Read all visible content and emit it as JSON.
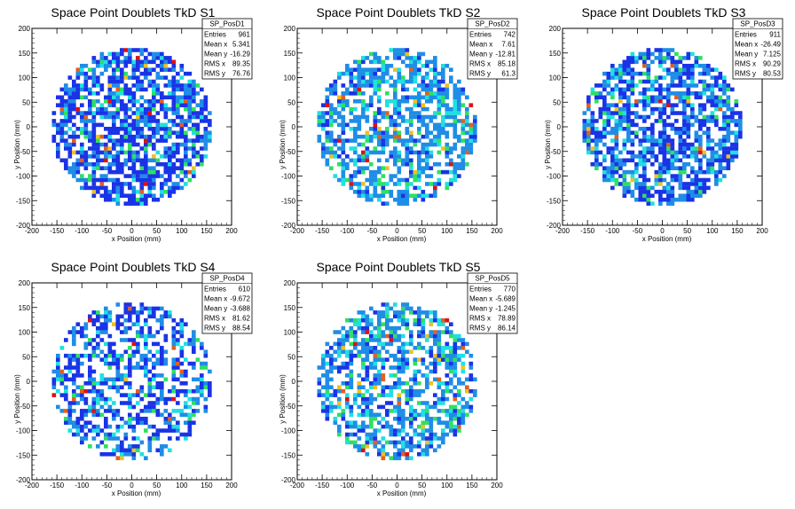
{
  "palette": [
    "#1a33e6",
    "#1f8de6",
    "#20e0e0",
    "#2fe060",
    "#f0c020",
    "#e06020",
    "#e01010"
  ],
  "chart_data": [
    {
      "type": "heatmap",
      "title": "Space Point Doublets TkD S1",
      "xlabel": "x Position (mm)",
      "ylabel": "y Position (mm)",
      "xlim": [
        -200,
        200
      ],
      "ylim": [
        -200,
        200
      ],
      "xticks": [
        -200,
        -150,
        -100,
        -50,
        0,
        50,
        100,
        150,
        200
      ],
      "yticks": [
        -200,
        -150,
        -100,
        -50,
        0,
        50,
        100,
        150,
        200
      ],
      "grid": false,
      "stats": {
        "name": "SP_PosD1",
        "rows": [
          [
            "Entries",
            "961"
          ],
          [
            "Mean x",
            "5.341"
          ],
          [
            "Mean y",
            "-16.29"
          ],
          [
            "RMS x",
            "89.35"
          ],
          [
            "RMS y",
            "76.76"
          ]
        ]
      },
      "bins": {
        "radius": 160,
        "bin_size": 8,
        "density": 0.68,
        "levels": [
          0.55,
          0.85,
          0.92,
          0.97,
          0.985,
          0.995
        ],
        "seed": 11
      }
    },
    {
      "type": "heatmap",
      "title": "Space Point Doublets TkD S2",
      "xlabel": "x Position (mm)",
      "ylabel": "y Position (mm)",
      "xlim": [
        -200,
        200
      ],
      "ylim": [
        -200,
        200
      ],
      "xticks": [
        -200,
        -150,
        -100,
        -50,
        0,
        50,
        100,
        150,
        200
      ],
      "yticks": [
        -200,
        -150,
        -100,
        -50,
        0,
        50,
        100,
        150,
        200
      ],
      "grid": false,
      "stats": {
        "name": "SP_PosD2",
        "rows": [
          [
            "Entries",
            "742"
          ],
          [
            "Mean x",
            "7.61"
          ],
          [
            "Mean y",
            "-12.81"
          ],
          [
            "RMS x",
            "85.18"
          ],
          [
            "RMS y",
            "61.3"
          ]
        ]
      },
      "bins": {
        "radius": 160,
        "bin_size": 8,
        "density": 0.6,
        "levels": [
          0.12,
          0.72,
          0.86,
          0.95,
          0.975,
          0.99
        ],
        "seed": 23
      }
    },
    {
      "type": "heatmap",
      "title": "Space Point Doublets TkD S3",
      "xlabel": "x Position (mm)",
      "ylabel": "y Position (mm)",
      "xlim": [
        -200,
        200
      ],
      "ylim": [
        -200,
        200
      ],
      "xticks": [
        -200,
        -150,
        -100,
        -50,
        0,
        50,
        100,
        150,
        200
      ],
      "yticks": [
        -200,
        -150,
        -100,
        -50,
        0,
        50,
        100,
        150,
        200
      ],
      "grid": false,
      "stats": {
        "name": "SP_PosD3",
        "rows": [
          [
            "Entries",
            "911"
          ],
          [
            "Mean x",
            "-26.49"
          ],
          [
            "Mean y",
            "7.125"
          ],
          [
            "RMS x",
            "90.29"
          ],
          [
            "RMS y",
            "80.53"
          ]
        ]
      },
      "bins": {
        "radius": 160,
        "bin_size": 8,
        "density": 0.66,
        "levels": [
          0.45,
          0.8,
          0.9,
          0.97,
          0.985,
          0.995
        ],
        "seed": 37
      }
    },
    {
      "type": "heatmap",
      "title": "Space Point Doublets TkD S4",
      "xlabel": "x Position (mm)",
      "ylabel": "y Position (mm)",
      "xlim": [
        -200,
        200
      ],
      "ylim": [
        -200,
        200
      ],
      "xticks": [
        -200,
        -150,
        -100,
        -50,
        0,
        50,
        100,
        150,
        200
      ],
      "yticks": [
        -200,
        -150,
        -100,
        -50,
        0,
        50,
        100,
        150,
        200
      ],
      "grid": false,
      "stats": {
        "name": "SP_PosD4",
        "rows": [
          [
            "Entries",
            "610"
          ],
          [
            "Mean x",
            "-9.672"
          ],
          [
            "Mean y",
            "-3.688"
          ],
          [
            "RMS x",
            "81.62"
          ],
          [
            "RMS y",
            "88.54"
          ]
        ]
      },
      "bins": {
        "radius": 160,
        "bin_size": 8,
        "density": 0.5,
        "levels": [
          0.5,
          0.82,
          0.92,
          0.975,
          0.988,
          0.995
        ],
        "seed": 41
      }
    },
    {
      "type": "heatmap",
      "title": "Space Point Doublets TkD S5",
      "xlabel": "x Position (mm)",
      "ylabel": "y Position (mm)",
      "xlim": [
        -200,
        200
      ],
      "ylim": [
        -200,
        200
      ],
      "xticks": [
        -200,
        -150,
        -100,
        -50,
        0,
        50,
        100,
        150,
        200
      ],
      "yticks": [
        -200,
        -150,
        -100,
        -50,
        0,
        50,
        100,
        150,
        200
      ],
      "grid": false,
      "stats": {
        "name": "SP_PosD5",
        "rows": [
          [
            "Entries",
            "770"
          ],
          [
            "Mean x",
            "-5.689"
          ],
          [
            "Mean y",
            "-1.245"
          ],
          [
            "RMS x",
            "78.89"
          ],
          [
            "RMS y",
            "86.14"
          ]
        ]
      },
      "bins": {
        "radius": 160,
        "bin_size": 8,
        "density": 0.58,
        "levels": [
          0.2,
          0.7,
          0.85,
          0.95,
          0.975,
          0.99
        ],
        "seed": 53
      }
    }
  ]
}
